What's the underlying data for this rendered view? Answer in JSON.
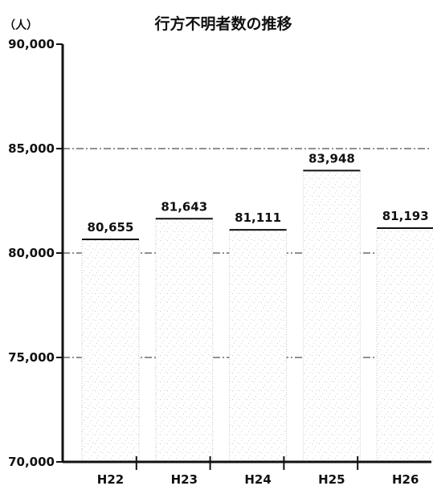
{
  "chart_data": {
    "type": "bar",
    "title": "行方不明者数の推移",
    "ylabel": "（人）",
    "xlabel": "",
    "categories": [
      "H22",
      "H23",
      "H24",
      "H25",
      "H26"
    ],
    "values": [
      80655,
      81643,
      81111,
      83948,
      81193
    ],
    "value_labels": [
      "80,655",
      "81,643",
      "81,111",
      "83,948",
      "81,193"
    ],
    "ylim": [
      70000,
      90000
    ],
    "yticks": [
      70000,
      75000,
      80000,
      85000,
      90000
    ],
    "ytick_labels": [
      "70,000",
      "75,000",
      "80,000",
      "85,000",
      "90,000"
    ],
    "grid": true,
    "legend": "none"
  }
}
